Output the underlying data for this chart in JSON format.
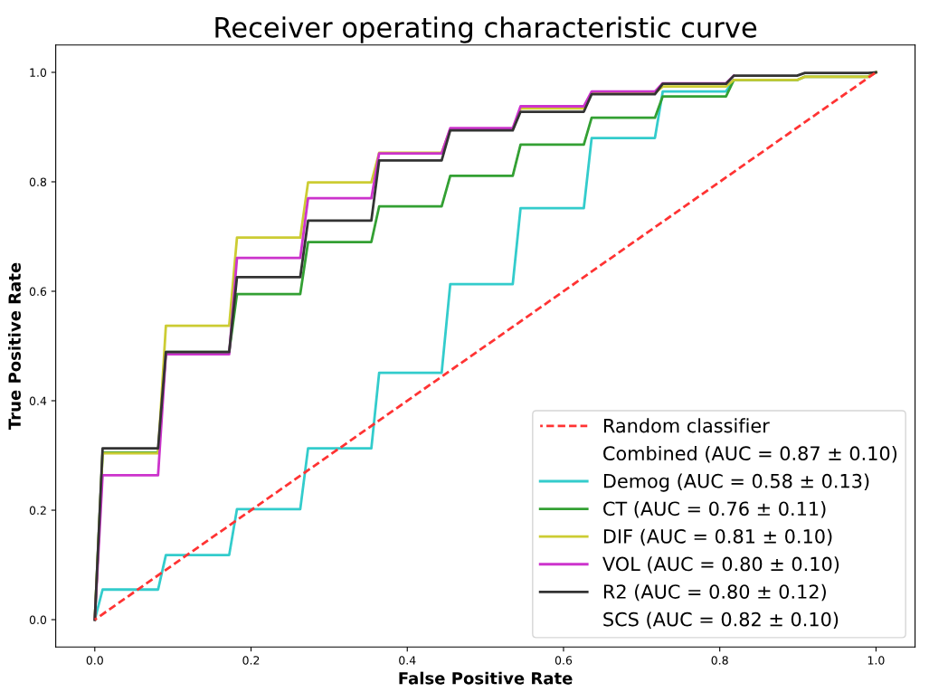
{
  "chart_data": {
    "type": "line",
    "title": "Receiver operating characteristic curve",
    "xlabel": "False Positive Rate",
    "ylabel": "True Positive Rate",
    "x": [
      0,
      0.01,
      0.081,
      0.091,
      0.172,
      0.182,
      0.263,
      0.273,
      0.354,
      0.364,
      0.444,
      0.455,
      0.535,
      0.545,
      0.626,
      0.636,
      0.717,
      0.727,
      0.808,
      0.818,
      0.899,
      0.909,
      0.99,
      1.0
    ],
    "series": [
      {
        "name": "Random classifier",
        "color": "#ff3333",
        "line_style": "dashed",
        "x": [
          0,
          1
        ],
        "values": [
          0,
          1
        ]
      },
      {
        "name": "Combined (AUC = 0.87 ± 0.10)",
        "values": [
          null,
          null,
          null,
          null,
          null,
          null,
          null,
          null,
          null,
          null,
          null,
          null,
          null,
          null,
          null,
          null,
          null,
          null,
          null,
          null,
          null,
          null,
          null,
          null
        ]
      },
      {
        "name": "Demog (AUC = 0.58 ± 0.13)",
        "color": "#33cccc",
        "values": [
          0,
          0.055,
          0.055,
          0.118,
          0.118,
          0.202,
          0.202,
          0.313,
          0.313,
          0.451,
          0.451,
          0.613,
          0.613,
          0.752,
          0.752,
          0.88,
          0.88,
          0.965,
          0.965,
          0.986,
          0.986,
          null,
          null,
          null
        ]
      },
      {
        "name": "CT (AUC = 0.76 ± 0.11)",
        "color": "#33a033",
        "values": [
          0,
          0.305,
          0.305,
          0.489,
          0.489,
          0.595,
          0.595,
          0.69,
          0.69,
          0.755,
          0.755,
          0.811,
          0.811,
          0.868,
          0.868,
          0.917,
          0.917,
          0.956,
          0.956,
          0.986,
          0.986,
          0.992,
          0.992,
          1.0
        ]
      },
      {
        "name": "DIF (AUC = 0.81 ± 0.10)",
        "color": "#cccc33",
        "values": [
          0,
          0.304,
          0.304,
          0.537,
          0.537,
          0.698,
          0.698,
          0.799,
          0.799,
          0.853,
          0.853,
          0.896,
          0.896,
          0.934,
          0.934,
          0.962,
          0.962,
          0.974,
          0.974,
          0.986,
          0.986,
          0.992,
          0.992,
          1.0
        ]
      },
      {
        "name": "VOL (AUC = 0.80 ± 0.10)",
        "color": "#cc33cc",
        "values": [
          0,
          0.264,
          0.264,
          0.485,
          0.485,
          0.661,
          0.661,
          0.77,
          0.77,
          0.852,
          0.852,
          0.898,
          0.898,
          0.938,
          0.938,
          0.965,
          0.965,
          0.98,
          0.98,
          0.994,
          null,
          null,
          null,
          null
        ]
      },
      {
        "name": "R2 (AUC = 0.80 ± 0.12)",
        "color": "#333333",
        "values": [
          0,
          0.313,
          0.313,
          0.489,
          0.489,
          0.626,
          0.626,
          0.729,
          0.729,
          0.839,
          0.839,
          0.894,
          0.894,
          0.928,
          0.928,
          0.96,
          0.96,
          0.979,
          0.979,
          0.994,
          0.994,
          0.999,
          0.999,
          1.0
        ]
      },
      {
        "name": "SCS (AUC = 0.82 ± 0.10)",
        "values": [
          null,
          null,
          null,
          null,
          null,
          null,
          null,
          null,
          null,
          null,
          null,
          null,
          null,
          null,
          null,
          null,
          null,
          null,
          null,
          null,
          null,
          null,
          null,
          null
        ]
      }
    ],
    "xlim": [
      -0.05,
      1.05
    ],
    "ylim": [
      -0.05,
      1.05
    ],
    "xticks": [
      {
        "value": 0,
        "label": "0.0"
      },
      0.2,
      0.4,
      0.6,
      0.8,
      {
        "value": 1,
        "label": "1.0"
      }
    ],
    "yticks": [
      {
        "value": 0,
        "label": "0.0"
      },
      0.2,
      0.4,
      0.6,
      0.8,
      {
        "value": 1,
        "label": "1.0"
      }
    ],
    "grid": false,
    "legend": "bottom right",
    "line_style": "solid"
  }
}
